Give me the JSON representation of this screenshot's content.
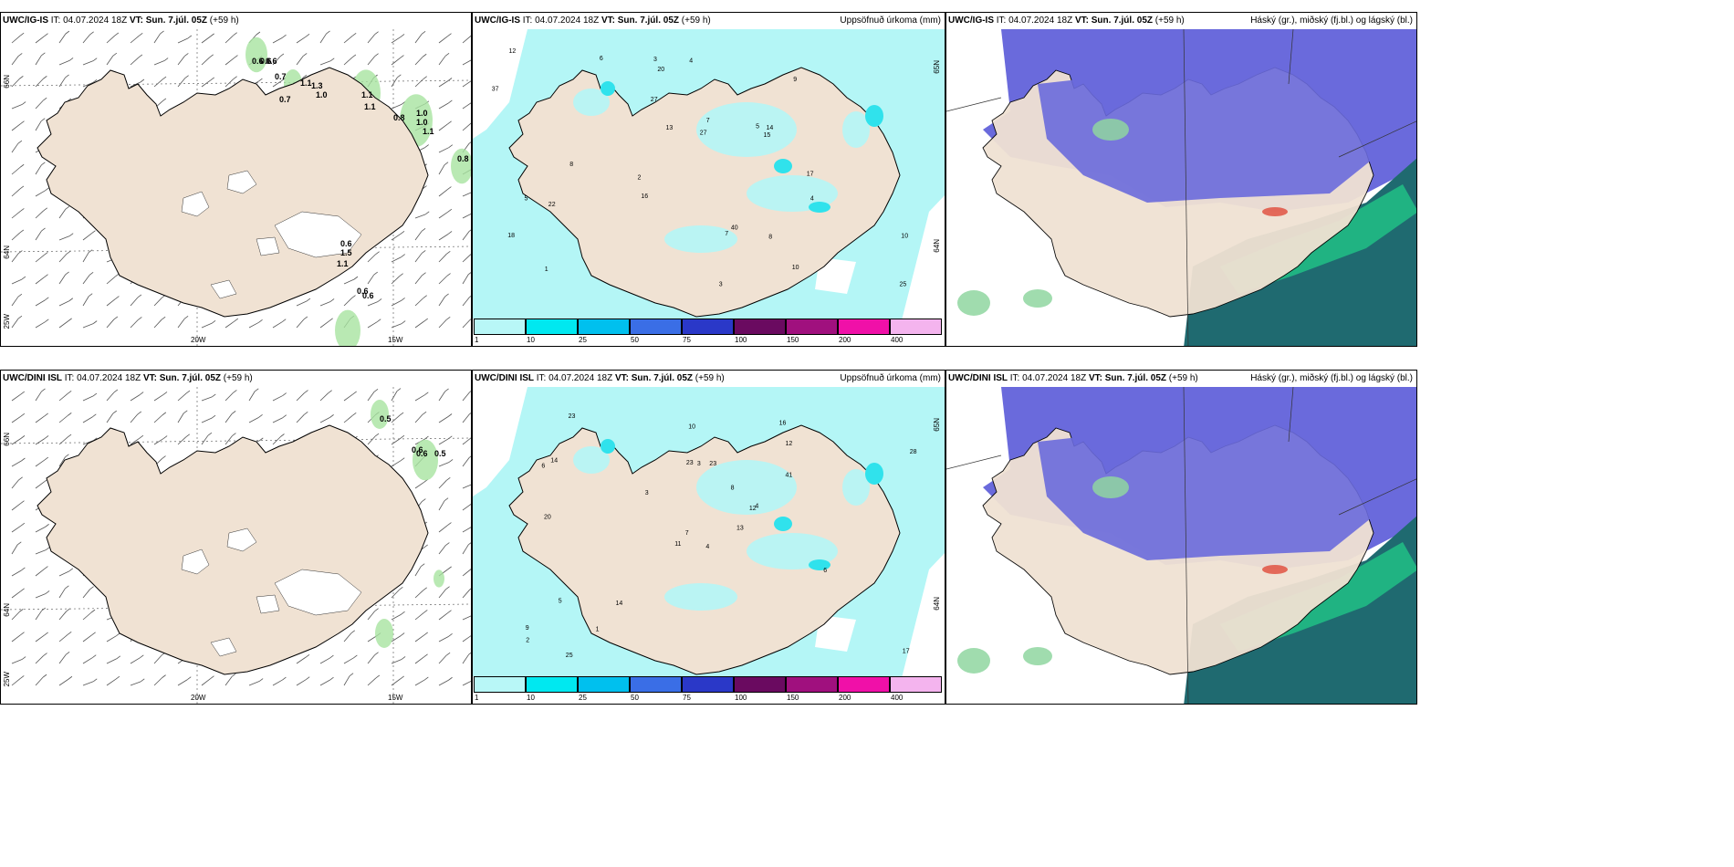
{
  "panels": [
    {
      "id": "p1",
      "model": "UWC/IG-IS",
      "it_label": "IT:",
      "it_value": "04.07.2024 18Z",
      "vt_label": "VT:",
      "vt_value": "Sun. 7.júl. 05Z",
      "lead": "(+59 h)",
      "right_title": "",
      "type": "wind",
      "grid_labels": {
        "lat_top": "66N",
        "lat_mid": "64N",
        "lon_left": "25W",
        "lon_a": "20W",
        "lon_b": "15W"
      },
      "values": [
        "0.6",
        "0.6",
        "0.6",
        "0.7",
        "0.7",
        "1.1",
        "1.3",
        "1.0",
        "1.1",
        "1.1",
        "1.0",
        "0.8",
        "1.0",
        "1.1",
        "0.8",
        "0.6",
        "1.5",
        "1.1",
        "0.6",
        "0.6"
      ]
    },
    {
      "id": "p2",
      "model": "UWC/IG-IS",
      "it_label": "IT:",
      "it_value": "04.07.2024 18Z",
      "vt_label": "VT:",
      "vt_value": "Sun. 7.júl. 05Z",
      "lead": "(+59 h)",
      "right_title": "Uppsöfnuð úrkoma (mm)",
      "type": "precip",
      "grid_labels": {
        "lat_top": "65N",
        "lat_mid": "64N"
      },
      "values": [
        "3",
        "4",
        "5",
        "7",
        "8",
        "7",
        "10",
        "13",
        "16",
        "18",
        "17",
        "27",
        "22",
        "27",
        "25",
        "40",
        "37",
        "20",
        "15",
        "14",
        "12",
        "10",
        "9",
        "6",
        "5",
        "3",
        "2",
        "1",
        "4",
        "8"
      ]
    },
    {
      "id": "p3",
      "model": "UWC/IG-IS",
      "it_label": "IT:",
      "it_value": "04.07.2024 18Z",
      "vt_label": "VT:",
      "vt_value": "Sun. 7.júl. 05Z",
      "lead": "(+59 h)",
      "right_title": "Háský (gr.), miðský (fj.bl.) og lágský (bl.)",
      "type": "cloud"
    },
    {
      "id": "p4",
      "model": "UWC/DINI ISL",
      "it_label": "IT:",
      "it_value": "04.07.2024 18Z",
      "vt_label": "VT:",
      "vt_value": "Sun. 7.júl. 05Z",
      "lead": "(+59 h)",
      "right_title": "",
      "type": "wind",
      "grid_labels": {
        "lat_top": "66N",
        "lat_mid": "64N",
        "lon_left": "25W",
        "lon_a": "20W",
        "lon_b": "15W"
      },
      "values": [
        "0.5",
        "0.6",
        "0.6",
        "0.5"
      ]
    },
    {
      "id": "p5",
      "model": "UWC/DINI ISL",
      "it_label": "IT:",
      "it_value": "04.07.2024 18Z",
      "vt_label": "VT:",
      "vt_value": "Sun. 7.júl. 05Z",
      "lead": "(+59 h)",
      "right_title": "Uppsöfnuð úrkoma (mm)",
      "type": "precip",
      "grid_labels": {
        "lat_top": "65N",
        "lat_mid": "64N"
      },
      "values": [
        "4",
        "6",
        "7",
        "9",
        "12",
        "14",
        "16",
        "23",
        "12",
        "13",
        "23",
        "17",
        "20",
        "28",
        "11",
        "41",
        "25",
        "23",
        "8",
        "5",
        "3",
        "2",
        "1",
        "3",
        "4",
        "6",
        "14",
        "10"
      ]
    },
    {
      "id": "p6",
      "model": "UWC/DINI ISL",
      "it_label": "IT:",
      "it_value": "04.07.2024 18Z",
      "vt_label": "VT:",
      "vt_value": "Sun. 7.júl. 05Z",
      "lead": "(+59 h)",
      "right_title": "Háský (gr.), miðský (fj.bl.) og lágský (bl.)",
      "type": "cloud"
    }
  ],
  "colorbar": {
    "ticks": [
      "1",
      "10",
      "25",
      "50",
      "75",
      "100",
      "150",
      "200",
      "400"
    ],
    "colors": [
      "#b8f7f7",
      "#00e8f0",
      "#00c0ee",
      "#3a6ee6",
      "#2a38c8",
      "#6a0a60",
      "#a0107e",
      "#f010a8",
      "#f4b4ee"
    ]
  },
  "colors": {
    "land": "#f0e2d3",
    "precip_light": "#b4f6f6",
    "precip_mid": "#30e2ec",
    "cloud_high": "#6a6adc",
    "cloud_mid": "#22cc88",
    "cloud_low": "#1f6a70"
  }
}
